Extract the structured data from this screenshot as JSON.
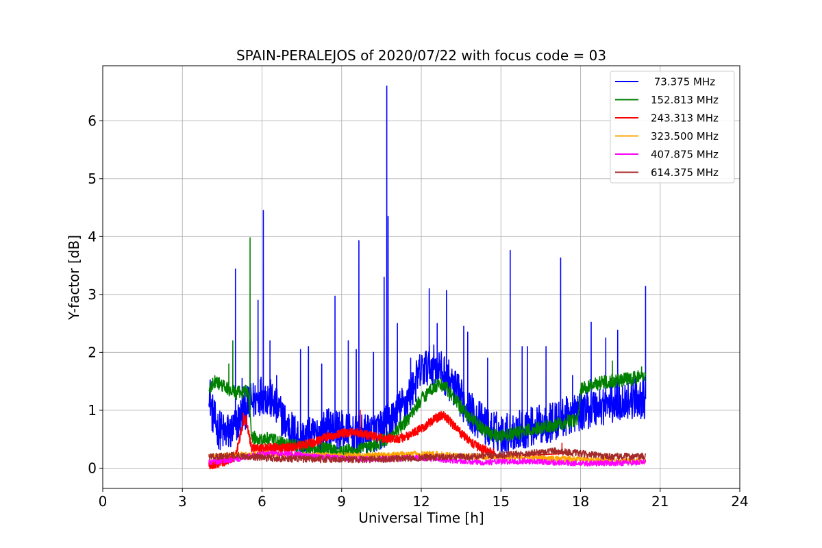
{
  "chart_data": {
    "type": "line",
    "title": "SPAIN-PERALEJOS of 2020/07/22 with focus code = 03",
    "xlabel": "Universal Time [h]",
    "ylabel": "Y-factor [dB]",
    "xlim": [
      0,
      24
    ],
    "ylim": [
      -0.35,
      6.95
    ],
    "xticks": [
      "0",
      "3",
      "6",
      "9",
      "12",
      "15",
      "18",
      "21",
      "24"
    ],
    "yticks": [
      "0",
      "1",
      "2",
      "3",
      "4",
      "5",
      "6"
    ],
    "grid": true,
    "legend_position": "top-right",
    "series": [
      {
        "name": " 73.375 MHz",
        "color": "#0000ff",
        "noise": 0.35,
        "x": [
          4.0,
          4.1,
          4.3,
          4.6,
          4.9,
          5.2,
          5.5,
          5.8,
          6.0,
          6.3,
          6.6,
          7.0,
          7.5,
          8.0,
          8.5,
          9.0,
          9.5,
          10.0,
          10.5,
          11.0,
          11.5,
          12.0,
          12.5,
          13.0,
          13.5,
          14.0,
          14.5,
          15.0,
          15.5,
          16.0,
          16.5,
          17.0,
          17.5,
          18.0,
          18.5,
          19.0,
          19.5,
          20.0,
          20.45
        ],
        "y": [
          1.45,
          1.0,
          0.7,
          0.6,
          0.65,
          0.9,
          1.1,
          1.2,
          1.3,
          1.2,
          1.0,
          0.7,
          0.5,
          0.55,
          0.7,
          0.65,
          0.55,
          0.6,
          0.65,
          0.9,
          1.2,
          1.7,
          1.8,
          1.55,
          1.2,
          0.9,
          0.7,
          0.6,
          0.65,
          0.7,
          0.75,
          0.8,
          0.9,
          1.0,
          1.05,
          1.1,
          1.15,
          1.2,
          1.2
        ],
        "spikes": [
          [
            5.0,
            3.44
          ],
          [
            5.25,
            1.55
          ],
          [
            5.55,
            2.2
          ],
          [
            5.85,
            2.9
          ],
          [
            6.05,
            4.45
          ],
          [
            6.3,
            2.2
          ],
          [
            6.55,
            1.6
          ],
          [
            7.45,
            2.05
          ],
          [
            7.75,
            2.1
          ],
          [
            8.25,
            1.8
          ],
          [
            8.75,
            2.97
          ],
          [
            9.25,
            2.2
          ],
          [
            9.55,
            2.05
          ],
          [
            9.65,
            3.93
          ],
          [
            10.2,
            2.0
          ],
          [
            10.6,
            3.3
          ],
          [
            10.7,
            6.6
          ],
          [
            10.75,
            4.35
          ],
          [
            11.1,
            2.5
          ],
          [
            11.6,
            1.9
          ],
          [
            12.3,
            3.1
          ],
          [
            12.6,
            2.5
          ],
          [
            12.95,
            3.07
          ],
          [
            13.6,
            2.45
          ],
          [
            13.75,
            2.35
          ],
          [
            14.5,
            1.9
          ],
          [
            15.35,
            3.76
          ],
          [
            15.8,
            2.1
          ],
          [
            16.0,
            2.1
          ],
          [
            16.7,
            2.1
          ],
          [
            17.25,
            3.63
          ],
          [
            17.7,
            1.6
          ],
          [
            18.4,
            2.52
          ],
          [
            18.95,
            2.25
          ],
          [
            19.4,
            2.38
          ],
          [
            20.45,
            3.14
          ]
        ]
      },
      {
        "name": "152.813 MHz",
        "color": "#008000",
        "noise": 0.12,
        "x": [
          4.0,
          4.2,
          4.6,
          5.0,
          5.3,
          5.5,
          5.6,
          5.8,
          6.2,
          6.6,
          7.0,
          7.5,
          8.0,
          8.5,
          9.0,
          9.5,
          10.0,
          10.5,
          11.0,
          11.5,
          12.0,
          12.5,
          12.8,
          13.0,
          13.5,
          14.0,
          14.5,
          15.0,
          15.5,
          16.0,
          16.5,
          17.0,
          17.5,
          17.9,
          18.0,
          18.5,
          19.0,
          19.5,
          20.0,
          20.45
        ],
        "y": [
          1.3,
          1.5,
          1.4,
          1.3,
          1.3,
          1.35,
          0.55,
          0.5,
          0.5,
          0.45,
          0.4,
          0.38,
          0.35,
          0.33,
          0.3,
          0.3,
          0.35,
          0.45,
          0.6,
          0.85,
          1.2,
          1.42,
          1.45,
          1.35,
          1.05,
          0.8,
          0.62,
          0.55,
          0.6,
          0.65,
          0.7,
          0.75,
          0.8,
          0.85,
          1.35,
          1.45,
          1.5,
          1.52,
          1.55,
          1.6
        ],
        "spikes": [
          [
            4.75,
            1.8
          ],
          [
            4.9,
            2.2
          ],
          [
            5.55,
            3.98
          ],
          [
            19.2,
            1.85
          ],
          [
            20.3,
            1.75
          ]
        ]
      },
      {
        "name": "243.313 MHz",
        "color": "#ff0000",
        "noise": 0.08,
        "x": [
          4.0,
          4.5,
          5.0,
          5.3,
          5.4,
          5.6,
          6.0,
          6.5,
          7.0,
          7.5,
          8.0,
          8.5,
          9.0,
          9.5,
          10.0,
          10.5,
          11.0,
          11.5,
          12.0,
          12.5,
          12.8,
          13.0,
          13.5,
          14.0,
          14.5,
          14.8
        ],
        "y": [
          0.05,
          0.1,
          0.2,
          0.8,
          0.85,
          0.35,
          0.35,
          0.35,
          0.35,
          0.4,
          0.45,
          0.55,
          0.6,
          0.62,
          0.57,
          0.52,
          0.5,
          0.55,
          0.68,
          0.85,
          0.92,
          0.85,
          0.6,
          0.4,
          0.3,
          0.25
        ],
        "spikes": [
          [
            5.3,
            0.95
          ],
          [
            9.7,
            1.0
          ],
          [
            17.3,
            0.43
          ]
        ]
      },
      {
        "name": "323.500 MHz",
        "color": "#ffa500",
        "noise": 0.05,
        "x": [
          4.0,
          6.0,
          8.0,
          10.0,
          12.0,
          14.0,
          16.0,
          18.0,
          20.45
        ],
        "y": [
          0.2,
          0.25,
          0.22,
          0.22,
          0.25,
          0.2,
          0.18,
          0.15,
          0.12
        ],
        "spikes": []
      },
      {
        "name": "407.875 MHz",
        "color": "#ff00ff",
        "noise": 0.05,
        "x": [
          4.0,
          5.0,
          6.0,
          7.0,
          8.0,
          10.0,
          12.0,
          14.0,
          16.0,
          18.0,
          20.45
        ],
        "y": [
          0.1,
          0.15,
          0.25,
          0.25,
          0.2,
          0.15,
          0.18,
          0.1,
          0.12,
          0.08,
          0.1
        ],
        "spikes": []
      },
      {
        "name": "614.375 MHz",
        "color": "#a52a2a",
        "noise": 0.06,
        "x": [
          4.0,
          5.0,
          6.0,
          8.0,
          10.0,
          12.0,
          14.0,
          16.0,
          17.0,
          18.0,
          19.0,
          20.45
        ],
        "y": [
          0.2,
          0.22,
          0.18,
          0.15,
          0.15,
          0.18,
          0.2,
          0.25,
          0.3,
          0.25,
          0.2,
          0.2
        ],
        "spikes": []
      }
    ]
  }
}
